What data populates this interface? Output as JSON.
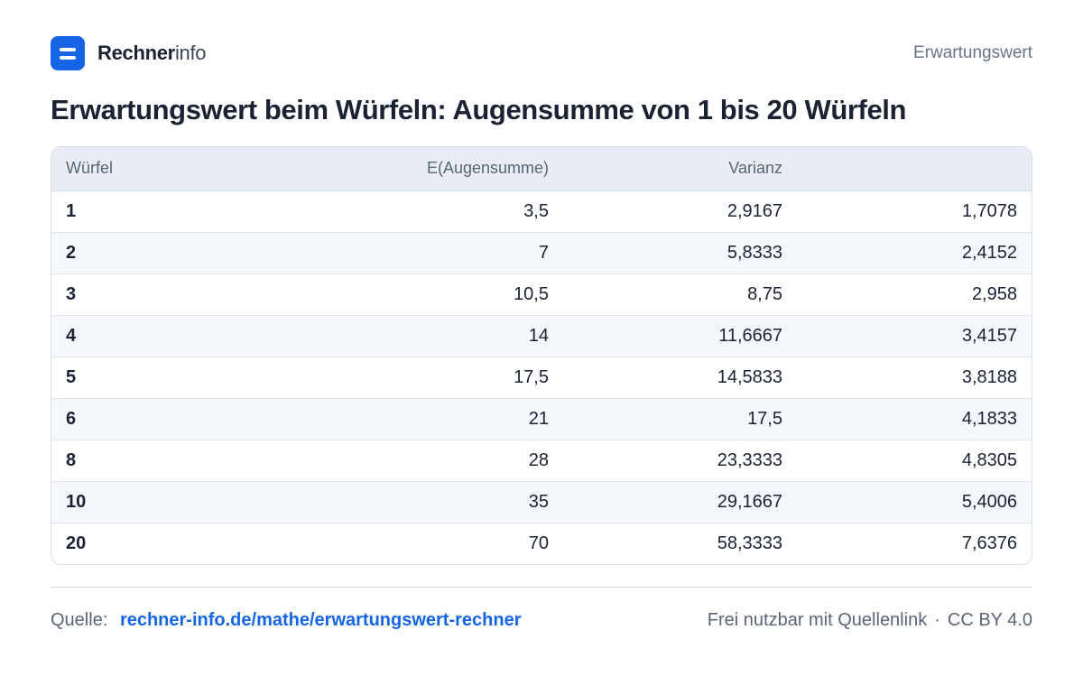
{
  "header": {
    "brand_strong": "Rechner",
    "brand_light": "info",
    "tag": "Erwartungswert"
  },
  "title": "Erwartungswert beim Würfeln: Augensumme von 1 bis 20 Würfeln",
  "table": {
    "columns": [
      "Würfel",
      "E(Augensumme)",
      "Varianz",
      ""
    ],
    "rows": [
      [
        "1",
        "3,5",
        "2,9167",
        "1,7078"
      ],
      [
        "2",
        "7",
        "5,8333",
        "2,4152"
      ],
      [
        "3",
        "10,5",
        "8,75",
        "2,958"
      ],
      [
        "4",
        "14",
        "11,6667",
        "3,4157"
      ],
      [
        "5",
        "17,5",
        "14,5833",
        "3,8188"
      ],
      [
        "6",
        "21",
        "17,5",
        "4,1833"
      ],
      [
        "8",
        "28",
        "23,3333",
        "4,8305"
      ],
      [
        "10",
        "35",
        "29,1667",
        "5,4006"
      ],
      [
        "20",
        "70",
        "58,3333",
        "7,6376"
      ]
    ]
  },
  "footer": {
    "source_label": "Quelle:",
    "source_link": "rechner-info.de/mathe/erwartungswert-rechner",
    "license_text": "Frei nutzbar mit Quellenlink",
    "separator": "·",
    "license": "CC BY 4.0"
  },
  "colors": {
    "accent": "#1565e6",
    "text": "#1a2233",
    "muted": "#5b6577",
    "header_bg": "#e8edf5",
    "stripe_bg": "#f4f7fb"
  }
}
